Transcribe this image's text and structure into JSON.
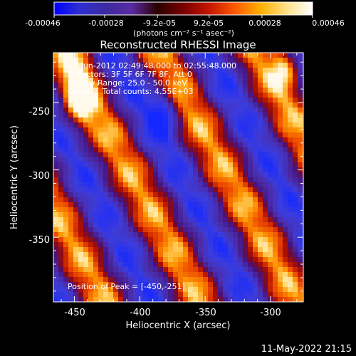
{
  "colorbar": {
    "tick_labels": [
      "-0.00046",
      "-0.00028",
      "-9.2e-05",
      "9.2e-05",
      "0.00028",
      "0.00046"
    ],
    "unit_label": "(photons cm⁻² s⁻¹ asec⁻²)",
    "colors": [
      "#0000ff",
      "#2f2fd0",
      "#3c2aa2",
      "#5a2aa0",
      "#2a0000",
      "#7a0000",
      "#c41600",
      "#ff5a00",
      "#ffb000",
      "#ffe08a",
      "#ffffff"
    ]
  },
  "overlay": {
    "line1": "27-Jun-2012 02:49:48.000 to 02:55:48.000",
    "line2": "Detectors: 3F 5F 6F 7F 8F, Att 0",
    "line3": "Energy Range: 25.0 - 50.0 keV",
    "line4": "Clean     Total counts: 4.55E+03",
    "peak": "Position of Peak = [-450,-251]"
  },
  "footer": {
    "timestamp": "11-May-2022 21:15"
  },
  "chart_data": {
    "type": "heatmap",
    "title": "Reconstructed RHESSI Image",
    "xlabel": "Heliocentric X (arcsec)",
    "ylabel": "Heliocentric Y (arcsec)",
    "xlim": [
      -466,
      -275
    ],
    "ylim": [
      -398,
      -213
    ],
    "x_ticks": [
      -450,
      -400,
      -350,
      -300
    ],
    "y_ticks": [
      -250,
      -300,
      -350
    ],
    "x_tick_labels": [
      "-450",
      "-400",
      "-350",
      "-300"
    ],
    "y_tick_labels": [
      "-250",
      "-300",
      "-350"
    ],
    "value_range": [
      -0.00046,
      0.00046
    ],
    "peak_position": [
      -450,
      -251
    ],
    "pattern": "diagonal alternating positive/negative stripes, strongest positive lobe near upper-left"
  }
}
